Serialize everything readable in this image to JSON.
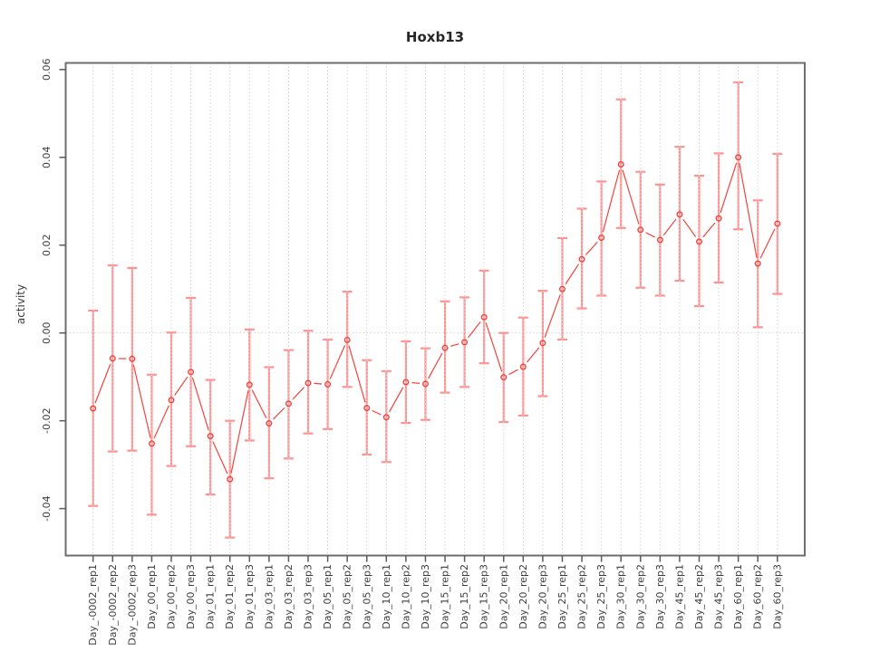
{
  "chart_data": {
    "type": "line",
    "title": "Hoxb13",
    "ylabel": "activity",
    "xlabel": "",
    "legend": "none",
    "grid": "vertical dotted gridline per category; dotted horizontal line at y=0",
    "ylim": [
      -0.0507,
      0.0615
    ],
    "yticks": [
      -0.04,
      -0.02,
      0.0,
      0.02,
      0.04,
      0.06
    ],
    "categories": [
      "Day_-0002_rep1",
      "Day_-0002_rep2",
      "Day_-0002_rep3",
      "Day_00_rep1",
      "Day_00_rep2",
      "Day_00_rep3",
      "Day_01_rep1",
      "Day_01_rep2",
      "Day_01_rep3",
      "Day_03_rep1",
      "Day_03_rep2",
      "Day_03_rep3",
      "Day_05_rep1",
      "Day_05_rep2",
      "Day_05_rep3",
      "Day_10_rep1",
      "Day_10_rep2",
      "Day_10_rep3",
      "Day_15_rep1",
      "Day_15_rep2",
      "Day_15_rep3",
      "Day_20_rep1",
      "Day_20_rep2",
      "Day_20_rep3",
      "Day_25_rep1",
      "Day_25_rep2",
      "Day_25_rep3",
      "Day_30_rep1",
      "Day_30_rep2",
      "Day_30_rep3",
      "Day_45_rep1",
      "Day_45_rep2",
      "Day_45_rep3",
      "Day_60_rep1",
      "Day_60_rep2",
      "Day_60_rep3"
    ],
    "series": [
      {
        "name": "activity",
        "marker": "open-circle",
        "values": [
          -0.0172,
          -0.0058,
          -0.0059,
          -0.0252,
          -0.0153,
          -0.0089,
          -0.0235,
          -0.0333,
          -0.0118,
          -0.0206,
          -0.0161,
          -0.0114,
          -0.0117,
          -0.0016,
          -0.0171,
          -0.0192,
          -0.0112,
          -0.0116,
          -0.0034,
          -0.0021,
          0.0036,
          -0.0101,
          -0.0077,
          -0.0023,
          0.01,
          0.0168,
          0.0217,
          0.0384,
          0.0235,
          0.0212,
          0.027,
          0.0208,
          0.0261,
          0.04,
          0.0158,
          0.0249
        ],
        "lower": [
          -0.0394,
          -0.027,
          -0.0268,
          -0.0414,
          -0.0303,
          -0.0258,
          -0.0368,
          -0.0466,
          -0.0245,
          -0.0331,
          -0.0286,
          -0.0229,
          -0.0219,
          -0.0123,
          -0.0277,
          -0.0294,
          -0.0205,
          -0.0198,
          -0.0136,
          -0.0123,
          -0.0069,
          -0.0203,
          -0.0188,
          -0.0144,
          -0.0015,
          0.0056,
          0.0085,
          0.0239,
          0.0103,
          0.0085,
          0.0119,
          0.0061,
          0.0115,
          0.0236,
          0.0013,
          0.0089
        ],
        "upper": [
          0.0051,
          0.0154,
          0.0148,
          -0.0095,
          0.0001,
          0.008,
          -0.0107,
          -0.02,
          0.0008,
          -0.0078,
          -0.0039,
          0.0005,
          -0.0015,
          0.0094,
          -0.0062,
          -0.0087,
          -0.0019,
          -0.0035,
          0.0072,
          0.0081,
          0.0142,
          0.0,
          0.0035,
          0.0096,
          0.0216,
          0.0283,
          0.0345,
          0.0532,
          0.0367,
          0.0338,
          0.0424,
          0.0358,
          0.0409,
          0.0571,
          0.0302,
          0.0408
        ]
      }
    ],
    "colors": {
      "point": "#f2433d",
      "line": "#f2433d",
      "errorbar": "#ff9392",
      "grid": "#d4d4d4",
      "box": "#6e6e6e",
      "tick": "#5a5a5a",
      "text": "#3d3d3d",
      "title": "#262626",
      "background": "#ffffff"
    }
  }
}
